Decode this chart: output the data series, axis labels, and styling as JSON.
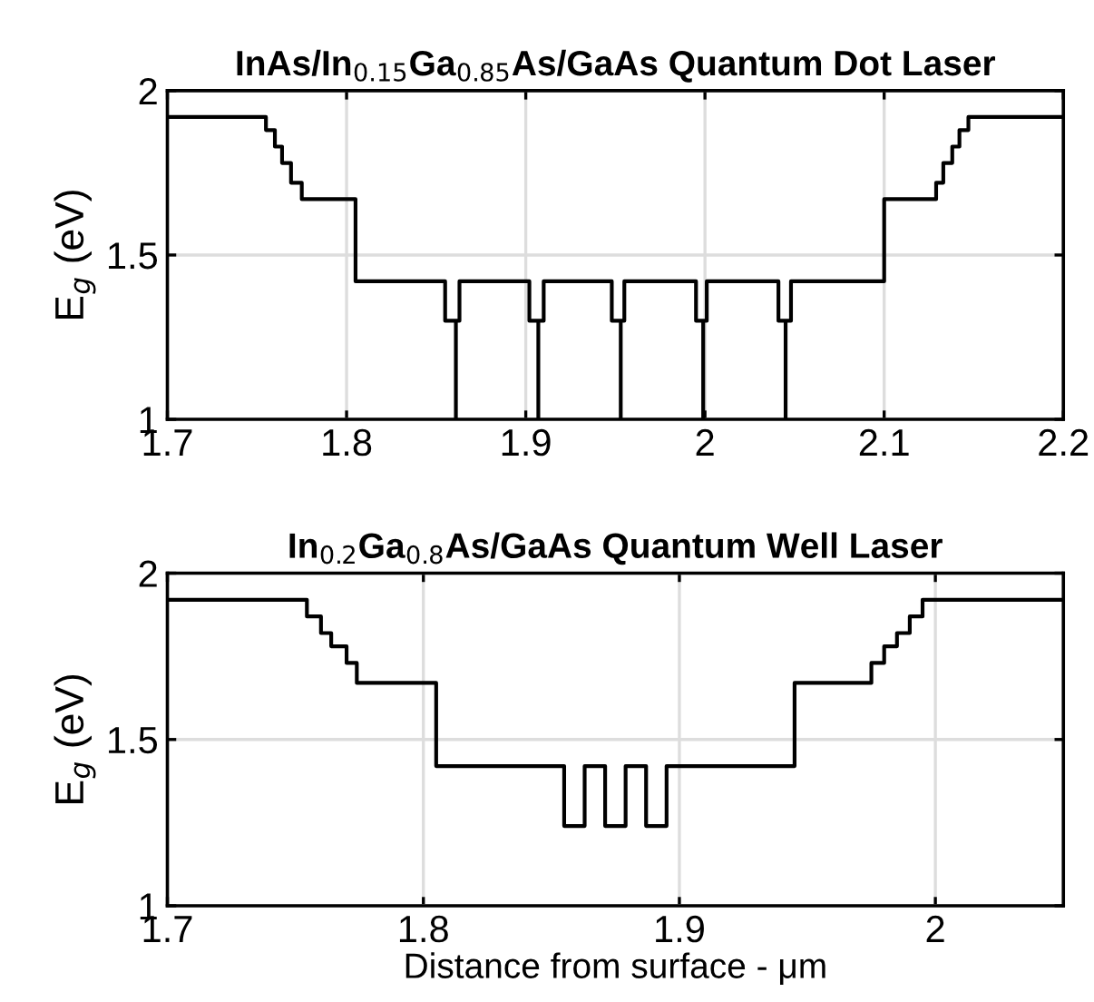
{
  "chart_data": [
    {
      "type": "step",
      "title": "InAs/In$_{0.15}$Ga$_{0.85}$As/GaAs Quantum Dot Laser",
      "ylabel": "E$_{g}$ (eV)",
      "xlim": [
        1.7,
        2.2
      ],
      "xticks": [
        1.7,
        1.8,
        1.9,
        2,
        2.1,
        2.2
      ],
      "ylim": [
        1,
        2
      ],
      "yticks": [
        1,
        1.5,
        2
      ],
      "grid": true,
      "series": [
        {
          "color": "#000000",
          "x": [
            1.7,
            1.755,
            1.76,
            1.764,
            1.769,
            1.775,
            1.805,
            1.855,
            1.861,
            1.861,
            1.863,
            1.902,
            1.907,
            1.907,
            1.91,
            1.948,
            1.953,
            1.953,
            1.955,
            1.995,
            1.999,
            1.999,
            2.001,
            2.041,
            2.045,
            2.045,
            2.048,
            2.1,
            2.129,
            2.133,
            2.138,
            2.142,
            2.147,
            2.2
          ],
          "values": [
            1.92,
            1.88,
            1.83,
            1.78,
            1.72,
            1.67,
            1.42,
            1.3,
            1.0,
            1.3,
            1.42,
            1.3,
            1.0,
            1.3,
            1.42,
            1.3,
            1.0,
            1.3,
            1.42,
            1.3,
            1.0,
            1.3,
            1.42,
            1.3,
            1.0,
            1.3,
            1.42,
            1.67,
            1.72,
            1.78,
            1.83,
            1.88,
            1.92,
            1.92
          ]
        }
      ]
    },
    {
      "type": "step",
      "title": "In$_{0.2}$Ga$_{0.8}$As/GaAs Quantum Well Laser",
      "ylabel": "E$_{g}$ (eV)",
      "xlabel": "Distance from surface - μm",
      "xlim": [
        1.7,
        2.05
      ],
      "xticks": [
        1.7,
        1.8,
        1.9,
        2
      ],
      "ylim": [
        1,
        2
      ],
      "yticks": [
        1,
        1.5,
        2
      ],
      "grid": true,
      "series": [
        {
          "color": "#000000",
          "x": [
            1.7,
            1.7545,
            1.76,
            1.764,
            1.77,
            1.774,
            1.805,
            1.855,
            1.863,
            1.871,
            1.879,
            1.887,
            1.895,
            1.945,
            1.975,
            1.98,
            1.985,
            1.99,
            1.995,
            2.05
          ],
          "values": [
            1.92,
            1.87,
            1.82,
            1.78,
            1.73,
            1.67,
            1.42,
            1.24,
            1.42,
            1.24,
            1.42,
            1.24,
            1.42,
            1.67,
            1.73,
            1.78,
            1.82,
            1.87,
            1.92,
            1.92
          ]
        }
      ]
    }
  ]
}
